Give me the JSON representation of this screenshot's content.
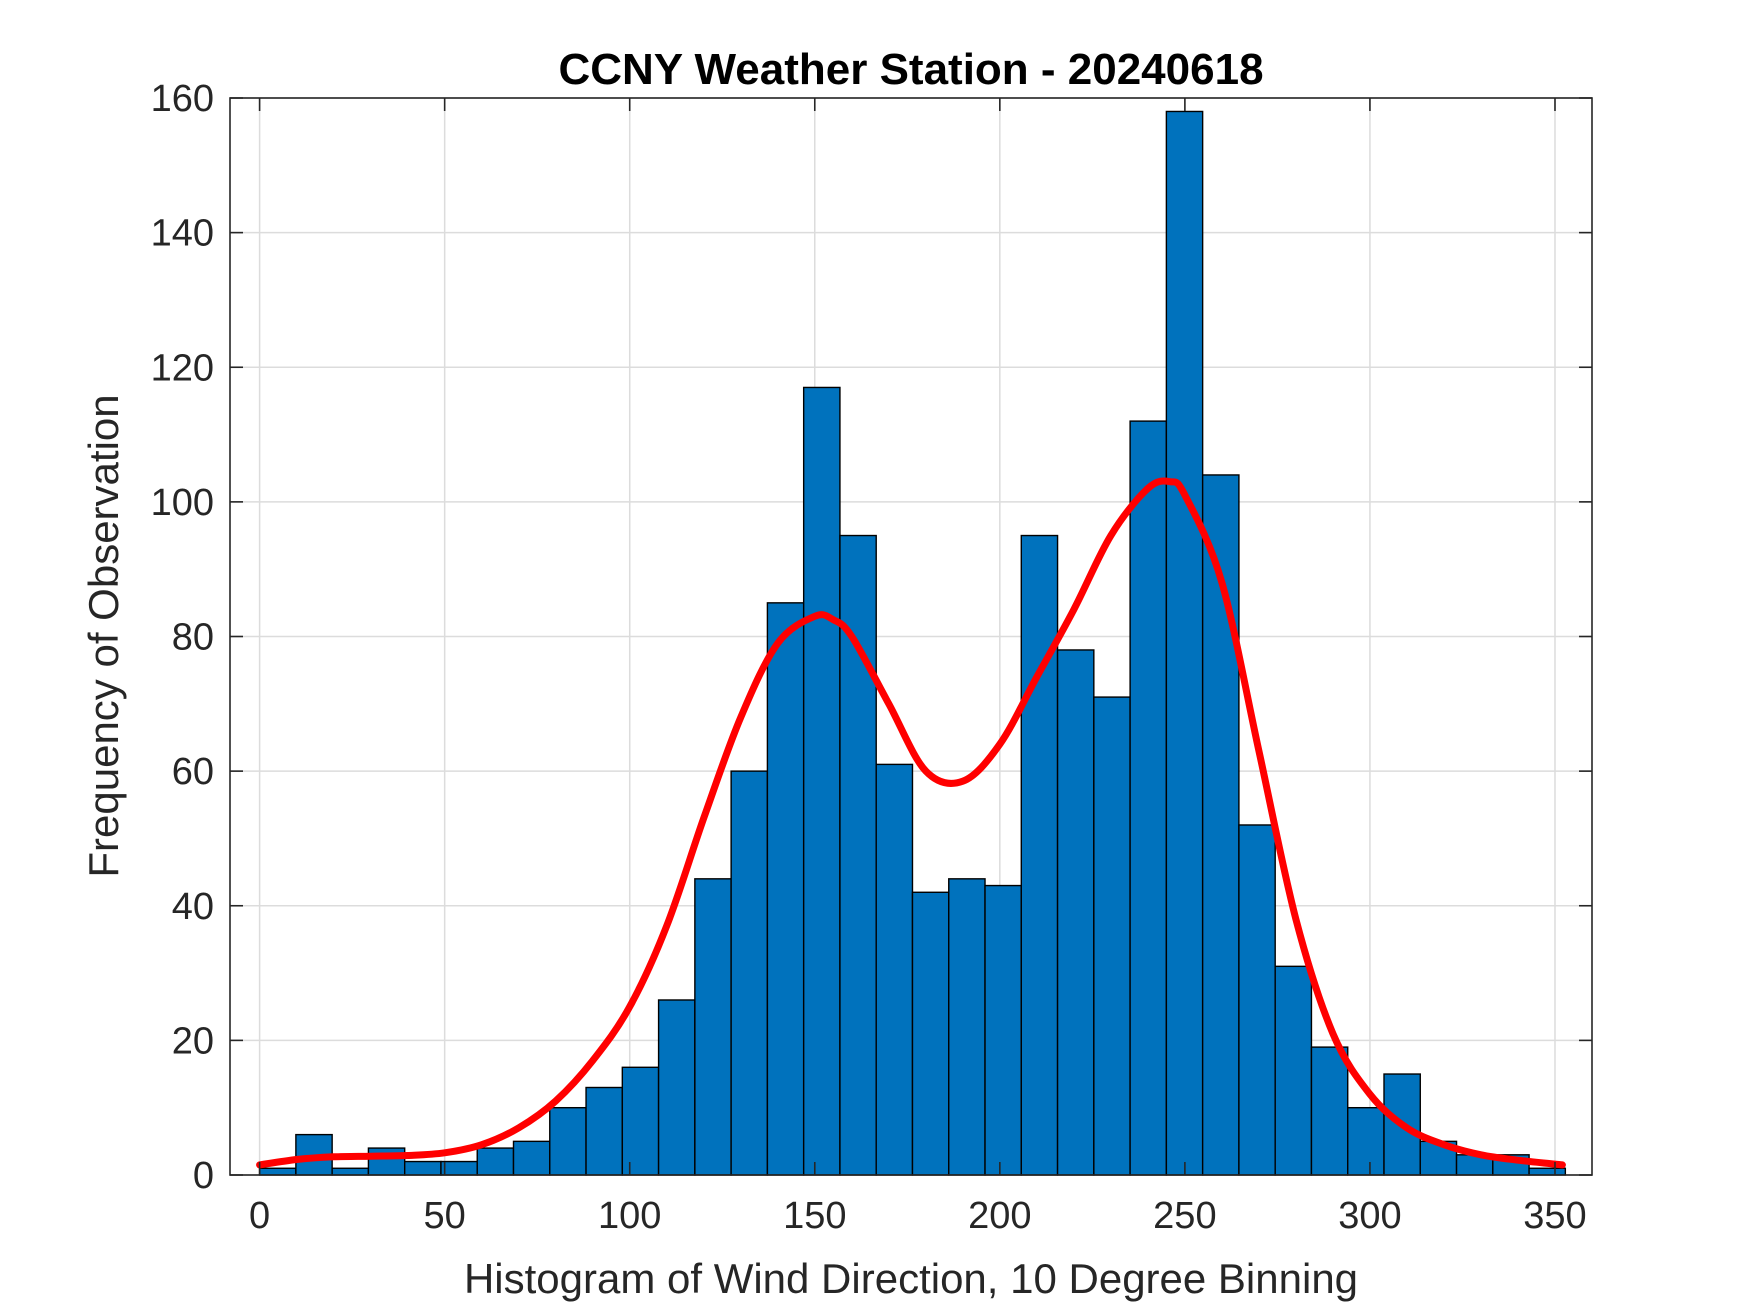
{
  "chart_data": {
    "type": "bar",
    "title": "CCNY Weather Station - 20240618",
    "xlabel": "Histogram of Wind Direction, 10 Degree Binning",
    "ylabel": "Frequency of Observation",
    "xlim": [
      -8,
      360
    ],
    "ylim": [
      0,
      160
    ],
    "xticks": [
      0,
      50,
      100,
      150,
      200,
      250,
      300,
      350
    ],
    "yticks": [
      0,
      20,
      40,
      60,
      80,
      100,
      120,
      140,
      160
    ],
    "grid": true,
    "bin_width": 9.8,
    "bin_edges": [
      0,
      9.8,
      19.6,
      29.4,
      39.2,
      49.0,
      58.8,
      68.6,
      78.4,
      88.2,
      98.0,
      107.8,
      117.6,
      127.4,
      137.2,
      147.0,
      156.8,
      166.6,
      176.4,
      186.2,
      196.0,
      205.8,
      215.6,
      225.4,
      235.2,
      245.0,
      254.8,
      264.6,
      274.4,
      284.2,
      294.0,
      303.8,
      313.6,
      323.4,
      333.2,
      343.0,
      352.8
    ],
    "values": [
      1,
      6,
      1,
      4,
      2,
      2,
      4,
      5,
      10,
      13,
      16,
      26,
      44,
      60,
      85,
      117,
      95,
      61,
      42,
      44,
      43,
      95,
      78,
      71,
      112,
      158,
      104,
      52,
      31,
      19,
      10,
      15,
      5,
      3,
      3,
      1
    ],
    "bar_color": "#0072bd",
    "fit_curve": {
      "name": "fit",
      "color": "#ff0000",
      "x": [
        0,
        10,
        20,
        30,
        40,
        50,
        60,
        70,
        80,
        90,
        100,
        110,
        120,
        130,
        140,
        150,
        155,
        160,
        170,
        180,
        190,
        200,
        210,
        220,
        230,
        240,
        246,
        250,
        260,
        270,
        280,
        290,
        300,
        310,
        320,
        330,
        340,
        352
      ],
      "y": [
        1.5,
        2.3,
        2.7,
        2.8,
        2.9,
        3.3,
        4.5,
        7,
        11,
        17,
        25,
        37,
        53,
        68,
        79,
        83,
        82.5,
        80,
        70,
        60,
        58.5,
        64,
        74,
        84,
        95,
        102,
        103,
        101,
        88,
        63,
        38,
        21,
        12,
        7,
        4.5,
        3,
        2.2,
        1.5
      ]
    }
  }
}
